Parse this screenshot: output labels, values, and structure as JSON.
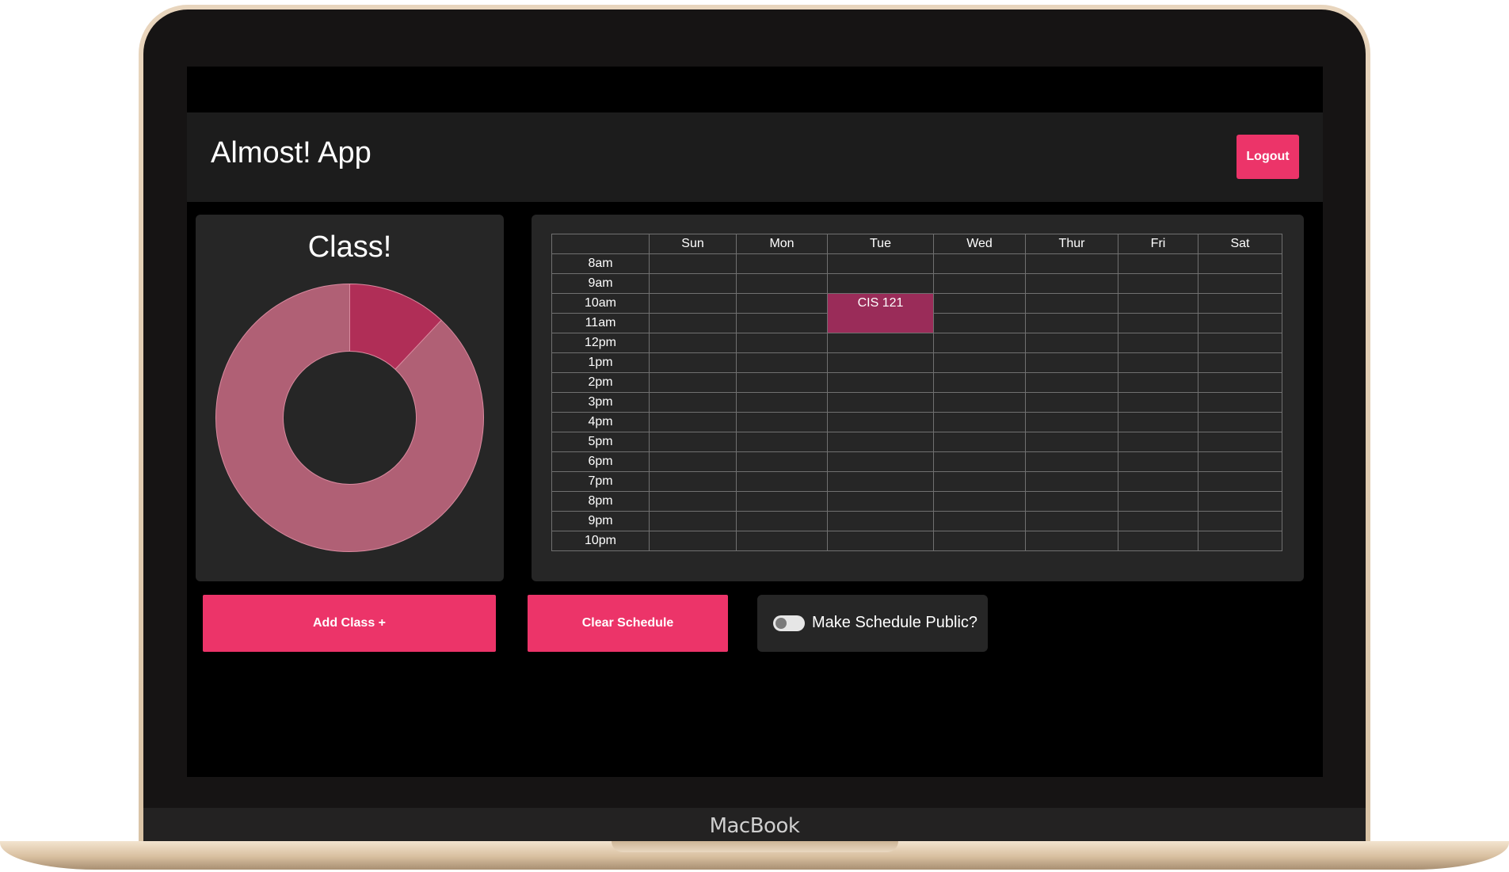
{
  "device": {
    "brand": "MacBook"
  },
  "header": {
    "title": "Almost! App",
    "logout_label": "Logout"
  },
  "chart_card": {
    "title": "Class!"
  },
  "chart_data": {
    "type": "pie",
    "title": "Class!",
    "style": "donut",
    "slices": [
      {
        "value": 12,
        "color": "#b02e57"
      },
      {
        "value": 88,
        "color": "#b06075"
      }
    ]
  },
  "schedule": {
    "days": [
      "Sun",
      "Mon",
      "Tue",
      "Wed",
      "Thur",
      "Fri",
      "Sat"
    ],
    "times": [
      "8am",
      "9am",
      "10am",
      "11am",
      "12pm",
      "1pm",
      "2pm",
      "3pm",
      "4pm",
      "5pm",
      "6pm",
      "7pm",
      "8pm",
      "9pm",
      "10pm"
    ],
    "classes": [
      {
        "name": "CIS 121",
        "day": "Tue",
        "start": "10am",
        "end": "11am",
        "color": "#9a2c59"
      }
    ]
  },
  "controls": {
    "add_label": "Add Class +",
    "clear_label": "Clear Schedule",
    "public_label": "Make Schedule Public?",
    "public_enabled": false
  },
  "colors": {
    "accent": "#ec3469",
    "card": "#262626",
    "topbar": "#1c1c1c"
  }
}
